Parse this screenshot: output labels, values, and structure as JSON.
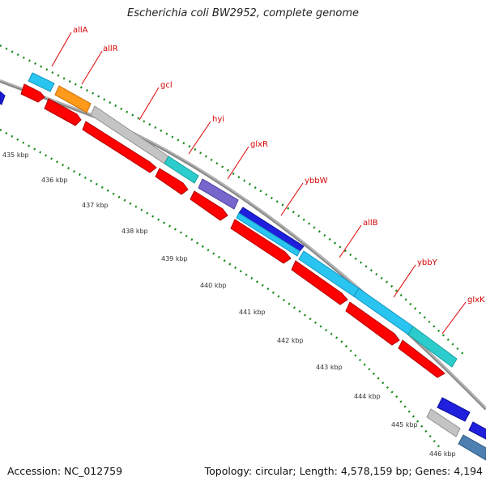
{
  "title": "Escherichia coli BW2952, complete genome",
  "footer": {
    "accession": "Accession: NC_012759",
    "stats": "Topology: circular; Length: 4,578,159 bp; Genes: 4,194"
  },
  "colors": {
    "backbone": "#8a8a8a",
    "backbone_light": "#c8c8c8",
    "tick_dots": "#1a8a1a",
    "gene_label": "#d40000",
    "label_line": "#e00000",
    "cds": "#ff0000",
    "cyan": "#29c5f0",
    "orange": "#ff9a1a",
    "gray": "#c4c4c4",
    "teal": "#2ccccc",
    "purple": "#7766cc",
    "blue": "#1f1fdd",
    "steel": "#4d7fb0"
  },
  "ruler": {
    "labels": [
      "435 kbp",
      "436 kbp",
      "437 kbp",
      "438 kbp",
      "439 kbp",
      "440 kbp",
      "441 kbp",
      "442 kbp",
      "443 kbp",
      "444 kbp",
      "445 kbp",
      "446 kbp"
    ]
  },
  "gene_labels": [
    {
      "name": "allA"
    },
    {
      "name": "allR"
    },
    {
      "name": "gcl"
    },
    {
      "name": "hyi"
    },
    {
      "name": "glxR"
    },
    {
      "name": "ybbW"
    },
    {
      "name": "allB"
    },
    {
      "name": "ybbY"
    },
    {
      "name": "glxK"
    }
  ]
}
